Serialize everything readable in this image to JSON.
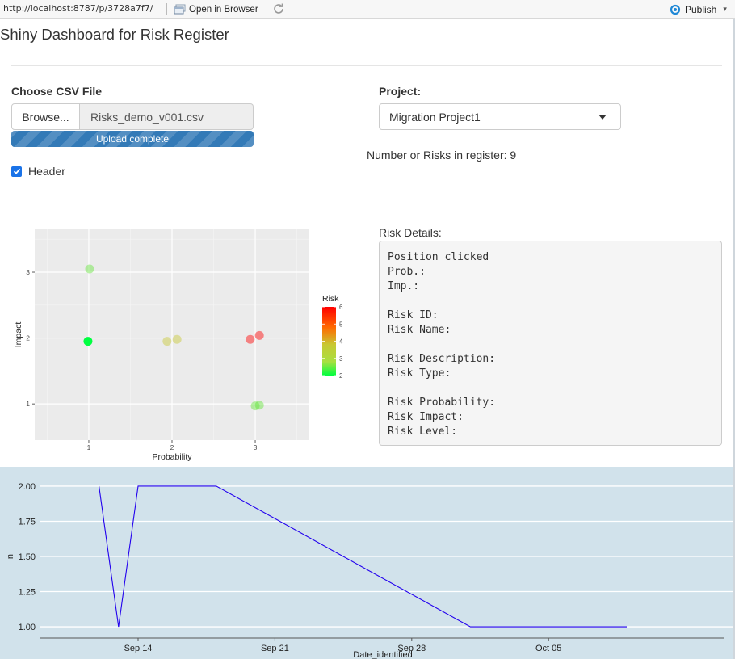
{
  "toolbar": {
    "url": "http://localhost:8787/p/3728a7f7/",
    "open_in_browser": "Open in Browser",
    "publish": "Publish"
  },
  "app": {
    "title": "Shiny Dashboard for Risk Register"
  },
  "file_input": {
    "label": "Choose CSV File",
    "browse_label": "Browse...",
    "file_name": "Risks_demo_v001.csv",
    "progress_text": "Upload complete",
    "progress": 1.0
  },
  "header_checkbox": {
    "label": "Header",
    "checked": true
  },
  "project_select": {
    "label": "Project:",
    "selected": "Migration Project1"
  },
  "risk_count_text": "Number or Risks in register: 9",
  "risk_details": {
    "label": "Risk Details:",
    "lines": [
      "Position clicked",
      "Prob.:",
      "Imp.:",
      "",
      "Risk ID:",
      "Risk Name:",
      "",
      "Risk Description:",
      "Risk Type:",
      "",
      "Risk Probability:",
      "Risk Impact:",
      "Risk Level:"
    ]
  },
  "colors": {
    "accent": "#337ab7",
    "checkbox": "#1a73e8",
    "panel_bg": "#ebebeb",
    "timeline_bg": "#d1e2eb",
    "timeline_line": "#2200ee",
    "risk_low": "#00ff40",
    "risk_high": "#ff0000"
  },
  "chart_data": [
    {
      "type": "scatter",
      "xlabel": "Probability",
      "ylabel": "Impact",
      "xticks": [
        "1",
        "2",
        "3"
      ],
      "yticks": [
        "1",
        "2",
        "3"
      ],
      "xlim": [
        0.35,
        3.65
      ],
      "ylim": [
        0.45,
        3.65
      ],
      "grid": true,
      "legend": {
        "title": "Risk",
        "position": "right",
        "ticks": [
          "6",
          "5",
          "4",
          "3",
          "2"
        ],
        "range": [
          2,
          6
        ]
      },
      "points": [
        {
          "x": 1.01,
          "y": 3.05,
          "risk": 3
        },
        {
          "x": 0.99,
          "y": 1.95,
          "risk": 2
        },
        {
          "x": 1.94,
          "y": 1.95,
          "risk": 4
        },
        {
          "x": 2.06,
          "y": 1.98,
          "risk": 4
        },
        {
          "x": 2.94,
          "y": 1.98,
          "risk": 6
        },
        {
          "x": 3.05,
          "y": 2.04,
          "risk": 6
        },
        {
          "x": 3.0,
          "y": 0.97,
          "risk": 3
        },
        {
          "x": 3.05,
          "y": 0.98,
          "risk": 3
        }
      ]
    },
    {
      "type": "line",
      "xlabel": "Date_identified",
      "ylabel": "n",
      "xticks": [
        "Sep 14",
        "Sep 21",
        "Sep 28",
        "Oct 05"
      ],
      "yticks": [
        "1.00",
        "1.25",
        "1.50",
        "1.75",
        "2.00"
      ],
      "ylim": [
        0.92,
        2.08
      ],
      "x": [
        "2020-09-12",
        "2020-09-13",
        "2020-09-14",
        "2020-09-18",
        "2020-10-01",
        "2020-10-09"
      ],
      "y": [
        2,
        1,
        2,
        2,
        1,
        1
      ]
    }
  ]
}
